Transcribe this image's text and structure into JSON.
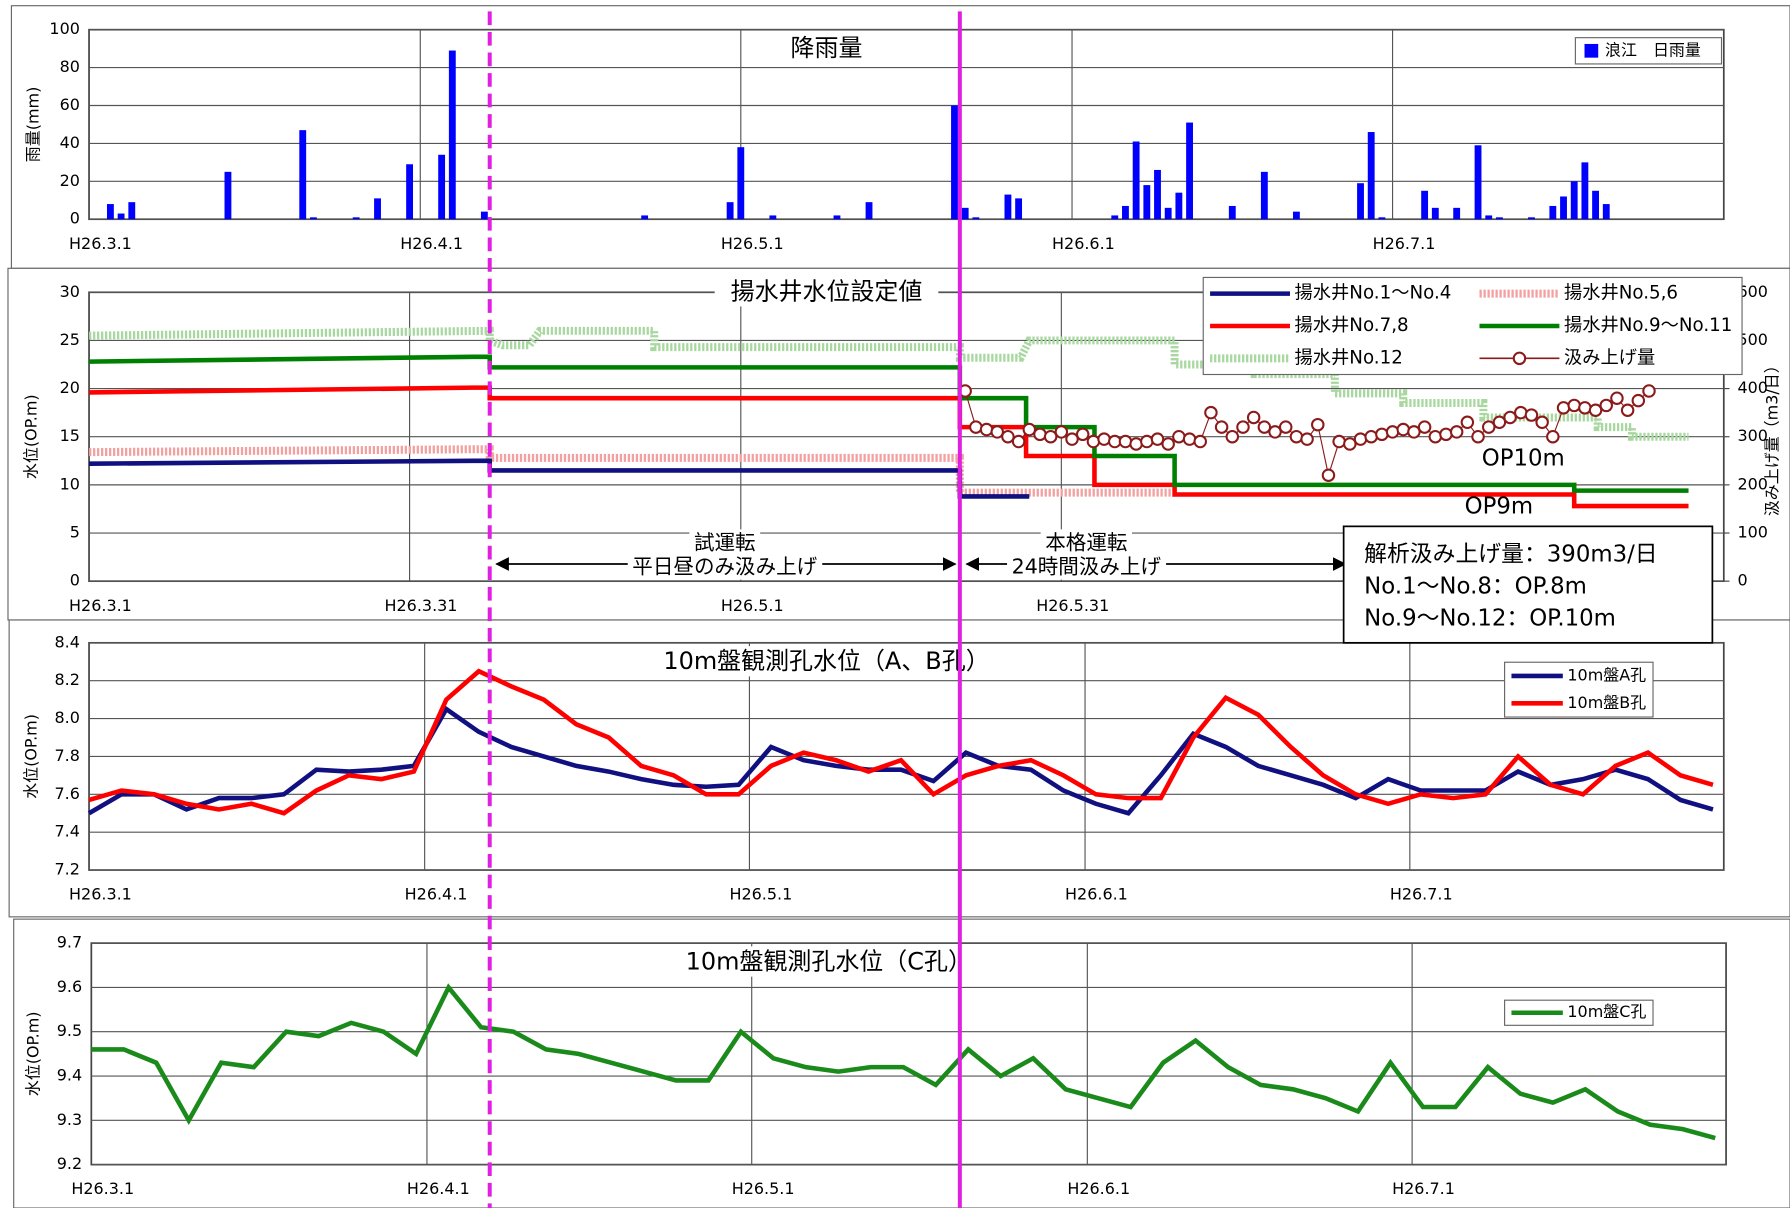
{
  "chart_data": [
    {
      "type": "bar",
      "title": "降雨量",
      "ylabel": "雨量(mm)",
      "xlim": [
        0,
        153
      ],
      "xticks": [
        {
          "value": 0,
          "label": "H26.3.1"
        },
        {
          "value": 31,
          "label": "H26.4.1"
        },
        {
          "value": 61,
          "label": "H26.5.1"
        },
        {
          "value": 92,
          "label": "H26.6.1"
        },
        {
          "value": 122,
          "label": "H26.7.1"
        }
      ],
      "ylim": [
        0,
        100
      ],
      "yticks": [
        0,
        20,
        40,
        60,
        80,
        100
      ],
      "grid": true,
      "legend": "upper right",
      "series": [
        {
          "name": "浪江　日雨量",
          "color": "#0000ff",
          "x": [
            2,
            3,
            4,
            13,
            20,
            21,
            25,
            27,
            30,
            33,
            34,
            37,
            52,
            60,
            61,
            64,
            70,
            73,
            81,
            82,
            83,
            86,
            87,
            96,
            97,
            98,
            99,
            100,
            101,
            102,
            103,
            107,
            110,
            113,
            119,
            120,
            121,
            125,
            126,
            128,
            130,
            131,
            132,
            135,
            137,
            138,
            139,
            140,
            141,
            142
          ],
          "values": [
            8,
            3,
            9,
            25,
            47,
            1,
            1,
            11,
            29,
            34,
            89,
            4,
            2,
            9,
            38,
            2,
            2,
            9,
            60,
            6,
            1,
            13,
            11,
            2,
            7,
            41,
            18,
            26,
            6,
            14,
            51,
            7,
            25,
            4,
            19,
            46,
            1,
            15,
            6,
            6,
            39,
            2,
            1,
            1,
            7,
            12,
            20,
            30,
            15,
            8
          ]
        }
      ]
    },
    {
      "type": "line",
      "title": "揚水井水位設定値",
      "ylabel": "水位(OP.m)",
      "y2label": "汲み上げ量（m3/日）",
      "xlim": [
        0,
        153
      ],
      "xticks": [
        {
          "value": 0,
          "label": "H26.3.1"
        },
        {
          "value": 30,
          "label": "H26.3.31"
        },
        {
          "value": 61,
          "label": "H26.5.1"
        },
        {
          "value": 91,
          "label": "H26.5.31"
        }
      ],
      "ylim": [
        0,
        30
      ],
      "yticks": [
        0,
        5,
        10,
        15,
        20,
        25,
        30
      ],
      "y2lim": [
        0,
        600
      ],
      "y2ticks": [
        0,
        100,
        200,
        300,
        400,
        500,
        600
      ],
      "grid": true,
      "legend": "upper right",
      "series": [
        {
          "name": "揚水井No.1～No.4",
          "color": "#101080",
          "style": "solid",
          "x": [
            0,
            36,
            37.5,
            37.5,
            81.5,
            81.5,
            88
          ],
          "values": [
            12.2,
            12.5,
            12.5,
            11.5,
            11.5,
            8.8,
            8.8
          ]
        },
        {
          "name": "揚水井No.5,6",
          "color": "#f2a0a0",
          "style": "hatched",
          "x": [
            0,
            36,
            37.5,
            37.5,
            81.5,
            81.5,
            101.6
          ],
          "values": [
            13.4,
            13.7,
            13.7,
            12.8,
            12.8,
            9.2,
            9.2
          ]
        },
        {
          "name": "揚水井No.7,8",
          "color": "#ff0000",
          "style": "solid",
          "x": [
            0,
            36,
            37.5,
            37.5,
            81.5,
            81.5,
            87.7,
            87.7,
            94.1,
            94.1,
            101.6,
            101.6,
            139,
            139,
            149.7
          ],
          "values": [
            19.6,
            20.1,
            20.1,
            19,
            19,
            16,
            16,
            13,
            13,
            10,
            10,
            9,
            9,
            7.8,
            7.8
          ]
        },
        {
          "name": "揚水井No.9～No.11",
          "color": "#008000",
          "style": "solid",
          "x": [
            0,
            36,
            37.5,
            37.5,
            81.5,
            81.5,
            87.7,
            87.7,
            94.1,
            94.1,
            101.6,
            101.6,
            139,
            139,
            149.7
          ],
          "values": [
            22.8,
            23.3,
            23.3,
            22.2,
            22.2,
            19,
            19,
            16,
            16,
            13,
            13,
            10,
            10,
            9.4,
            9.4
          ]
        },
        {
          "name": "揚水井No.12",
          "color": "#a8d8a0",
          "style": "hatched",
          "x": [
            0,
            37.5,
            37.5,
            38.7,
            41.2,
            42.2,
            52.9,
            52.9,
            81.5,
            81.5,
            87.2,
            88,
            101.6,
            101.6,
            109.1,
            109.1,
            116.6,
            116.6,
            123,
            123,
            130.5,
            130.5,
            141.2,
            141.2,
            144.4,
            144.4,
            149.7
          ],
          "values": [
            25.5,
            26,
            25,
            24.5,
            24.5,
            26,
            26,
            24.3,
            24.3,
            23.2,
            23.2,
            25,
            25,
            22.5,
            22.5,
            21.5,
            21.5,
            19.5,
            19.5,
            18.5,
            18.5,
            17,
            17,
            16,
            16,
            15,
            15
          ]
        },
        {
          "name": "汲み上げ量",
          "color": "#8b1a1a",
          "style": "markers",
          "axis": "y2",
          "x": [
            82,
            83,
            84,
            85,
            86,
            87,
            88,
            89,
            90,
            91,
            92,
            93,
            94,
            95,
            96,
            97,
            98,
            99,
            100,
            101,
            102,
            103,
            104,
            105,
            106,
            107,
            108,
            109,
            110,
            111,
            112,
            113,
            114,
            115,
            116,
            117,
            118,
            119,
            120,
            121,
            122,
            123,
            124,
            125,
            126,
            127,
            128,
            129,
            130,
            131,
            132,
            133,
            134,
            135,
            136,
            137,
            138,
            139,
            140,
            141,
            142,
            143,
            144,
            145,
            146
          ],
          "values": [
            395,
            320,
            315,
            310,
            300,
            290,
            315,
            305,
            300,
            310,
            295,
            305,
            290,
            295,
            290,
            290,
            285,
            290,
            295,
            285,
            300,
            295,
            290,
            350,
            320,
            300,
            320,
            340,
            320,
            310,
            320,
            300,
            295,
            325,
            220,
            290,
            285,
            295,
            300,
            305,
            310,
            315,
            310,
            320,
            300,
            305,
            310,
            330,
            300,
            320,
            330,
            340,
            350,
            345,
            330,
            300,
            360,
            365,
            360,
            355,
            365,
            380,
            355,
            375,
            395
          ]
        }
      ],
      "phases": [
        {
          "name": "試運転",
          "note": "平日昼のみ汲み上げ",
          "line": "dashed",
          "x": [
            37.5,
            81.5
          ]
        },
        {
          "name": "本格運転",
          "note": "24時間汲み上げ",
          "line": "solid",
          "x": [
            81.5,
            118
          ]
        }
      ],
      "labels": [
        {
          "text": "OP10m",
          "color": "#00a000"
        },
        {
          "text": "OP9m",
          "color": "#ff0000"
        }
      ],
      "note_box": [
        "解析汲み上げ量：390m3/日",
        "No.1～No.8：OP.8m",
        "No.9～No.12：OP.10m"
      ]
    },
    {
      "type": "line",
      "title": "10m盤観測孔水位（A、B孔）",
      "ylabel": "水位(OP.m)",
      "xlim": [
        0,
        151
      ],
      "xticks": [
        {
          "value": 0,
          "label": "H26.3.1"
        },
        {
          "value": 31,
          "label": "H26.4.1"
        },
        {
          "value": 61,
          "label": "H26.5.1"
        },
        {
          "value": 92,
          "label": "H26.6.1"
        },
        {
          "value": 122,
          "label": "H26.7.1"
        }
      ],
      "ylim": [
        7.2,
        8.4
      ],
      "yticks": [
        7.2,
        7.4,
        7.6,
        7.8,
        {
          "value": 8,
          "label": "8.0"
        },
        8.2,
        8.4
      ],
      "grid": true,
      "legend": "upper right",
      "x": [
        0,
        3,
        6,
        9,
        12,
        15,
        18,
        21,
        24,
        27,
        30,
        33,
        36,
        39,
        42,
        45,
        48,
        51,
        54,
        57,
        60,
        63,
        66,
        69,
        72,
        75,
        78,
        81,
        84,
        87,
        90,
        93,
        96,
        99,
        102,
        105,
        108,
        111,
        114,
        117,
        120,
        123,
        126,
        129,
        132,
        135,
        138,
        141,
        144,
        147,
        150
      ],
      "series": [
        {
          "name": "10m盤A孔",
          "color": "#101080",
          "values": [
            7.5,
            7.6,
            7.6,
            7.52,
            7.58,
            7.58,
            7.6,
            7.73,
            7.72,
            7.73,
            7.75,
            8.05,
            7.93,
            7.85,
            7.8,
            7.75,
            7.72,
            7.68,
            7.65,
            7.64,
            7.65,
            7.85,
            7.78,
            7.75,
            7.73,
            7.73,
            7.67,
            7.82,
            7.75,
            7.73,
            7.62,
            7.55,
            7.5,
            7.7,
            7.92,
            7.85,
            7.75,
            7.7,
            7.65,
            7.58,
            7.68,
            7.62,
            7.62,
            7.62,
            7.72,
            7.65,
            7.68,
            7.73,
            7.68,
            7.57,
            7.52
          ]
        },
        {
          "name": "10m盤B孔",
          "color": "#ff0000",
          "values": [
            7.57,
            7.62,
            7.6,
            7.55,
            7.52,
            7.55,
            7.5,
            7.62,
            7.7,
            7.68,
            7.72,
            8.1,
            8.25,
            8.17,
            8.1,
            7.97,
            7.9,
            7.75,
            7.7,
            7.6,
            7.6,
            7.75,
            7.82,
            7.78,
            7.72,
            7.78,
            7.6,
            7.7,
            7.75,
            7.78,
            7.7,
            7.6,
            7.58,
            7.58,
            7.9,
            8.11,
            8.02,
            7.85,
            7.7,
            7.6,
            7.55,
            7.6,
            7.58,
            7.6,
            7.8,
            7.65,
            7.6,
            7.75,
            7.82,
            7.7,
            7.65
          ]
        }
      ]
    },
    {
      "type": "line",
      "title": "10m盤観測孔水位（C孔）",
      "ylabel": "水位(OP.m)",
      "xlim": [
        0,
        151
      ],
      "xticks": [
        {
          "value": 0,
          "label": "H26.3.1"
        },
        {
          "value": 31,
          "label": "H26.4.1"
        },
        {
          "value": 61,
          "label": "H26.5.1"
        },
        {
          "value": 92,
          "label": "H26.6.1"
        },
        {
          "value": 122,
          "label": "H26.7.1"
        }
      ],
      "ylim": [
        9.2,
        9.7
      ],
      "yticks": [
        9.2,
        9.3,
        9.4,
        9.5,
        9.6,
        9.7
      ],
      "grid": true,
      "legend": "upper right",
      "x": [
        0,
        3,
        6,
        9,
        12,
        15,
        18,
        21,
        24,
        27,
        30,
        33,
        36,
        39,
        42,
        45,
        48,
        51,
        54,
        57,
        60,
        63,
        66,
        69,
        72,
        75,
        78,
        81,
        84,
        87,
        90,
        93,
        96,
        99,
        102,
        105,
        108,
        111,
        114,
        117,
        120,
        123,
        126,
        129,
        132,
        135,
        138,
        141,
        144,
        147,
        150
      ],
      "series": [
        {
          "name": "10m盤C孔",
          "color": "#1a8a1a",
          "values": [
            9.46,
            9.46,
            9.43,
            9.3,
            9.43,
            9.42,
            9.5,
            9.49,
            9.52,
            9.5,
            9.45,
            9.6,
            9.51,
            9.5,
            9.46,
            9.45,
            9.43,
            9.41,
            9.39,
            9.39,
            9.5,
            9.44,
            9.42,
            9.41,
            9.42,
            9.42,
            9.38,
            9.46,
            9.4,
            9.44,
            9.37,
            9.35,
            9.33,
            9.43,
            9.48,
            9.42,
            9.38,
            9.37,
            9.35,
            9.32,
            9.43,
            9.33,
            9.33,
            9.42,
            9.36,
            9.34,
            9.37,
            9.32,
            9.29,
            9.28,
            9.26
          ]
        }
      ]
    }
  ]
}
